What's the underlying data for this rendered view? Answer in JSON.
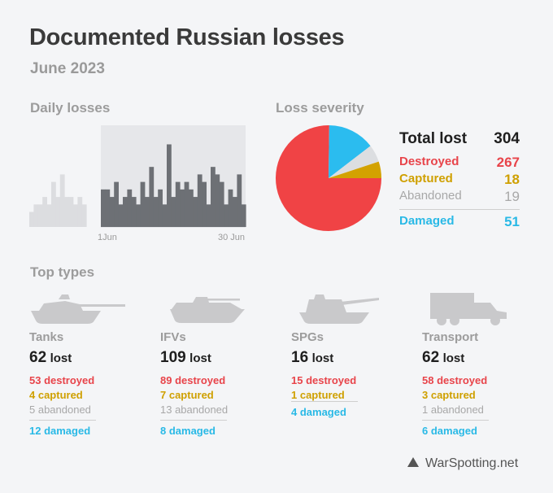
{
  "header": {
    "title": "Documented Russian losses",
    "subtitle": "June 2023"
  },
  "sections": {
    "daily": "Daily losses",
    "severity": "Loss severity",
    "types": "Top types"
  },
  "chart_data": [
    {
      "type": "bar",
      "title": "Daily losses",
      "tick_labels": [
        "1Jun",
        "30 Jun"
      ],
      "ylim": [
        0,
        13
      ],
      "grid": false,
      "series": [
        {
          "values": [
            2,
            3,
            3,
            4,
            3,
            6,
            4,
            7,
            4,
            4,
            3,
            4,
            3
          ]
        },
        {
          "values": [
            5,
            5,
            4,
            6,
            3,
            4,
            5,
            4,
            3,
            6,
            4,
            8,
            4,
            5,
            3,
            11,
            4,
            6,
            5,
            6,
            5,
            4,
            7,
            6,
            3,
            8,
            7,
            6,
            3,
            5,
            4,
            7,
            3
          ]
        }
      ],
      "colors": {
        "before": "#dcdde0",
        "june": "#6d7075",
        "highlight": "#e6e7ea"
      }
    },
    {
      "type": "pie",
      "title": "Loss severity",
      "categories": [
        "Destroyed",
        "Damaged",
        "Abandoned",
        "Captured"
      ],
      "values": [
        267,
        51,
        19,
        18
      ],
      "colors": [
        "#f04345",
        "#2bbcef",
        "#dcdee1",
        "#d3a200"
      ]
    }
  ],
  "severity": {
    "total_label": "Total lost",
    "total_value": "304",
    "destroyed_label": "Destroyed",
    "destroyed_value": "267",
    "captured_label": "Captured",
    "captured_value": "18",
    "abandoned_label": "Abandoned",
    "abandoned_value": "19",
    "damaged_label": "Damaged",
    "damaged_value": "51"
  },
  "vehicles": [
    {
      "icon": "tank-icon",
      "name": "Tanks",
      "lost_num": "62",
      "lost_word": "lost",
      "destroyed": "53 destroyed",
      "captured": "4 captured",
      "abandoned": "5 abandoned",
      "damaged": "12 damaged"
    },
    {
      "icon": "ifv-icon",
      "name": "IFVs",
      "lost_num": "109",
      "lost_word": "lost",
      "destroyed": "89 destroyed",
      "captured": "7 captured",
      "abandoned": "13 abandoned",
      "damaged": "8 damaged"
    },
    {
      "icon": "spg-icon",
      "name": "SPGs",
      "lost_num": "16",
      "lost_word": "lost",
      "destroyed": "15 destroyed",
      "captured": "1 captured",
      "damaged": "4 damaged"
    },
    {
      "icon": "truck-icon",
      "name": "Transport",
      "lost_num": "62",
      "lost_word": "lost",
      "destroyed": "58 destroyed",
      "captured": "3 captured",
      "abandoned": "1 abandoned",
      "damaged": "6 damaged"
    }
  ],
  "footer": {
    "source": "WarSpotting.net",
    "icon": "triangle-logo-icon"
  }
}
